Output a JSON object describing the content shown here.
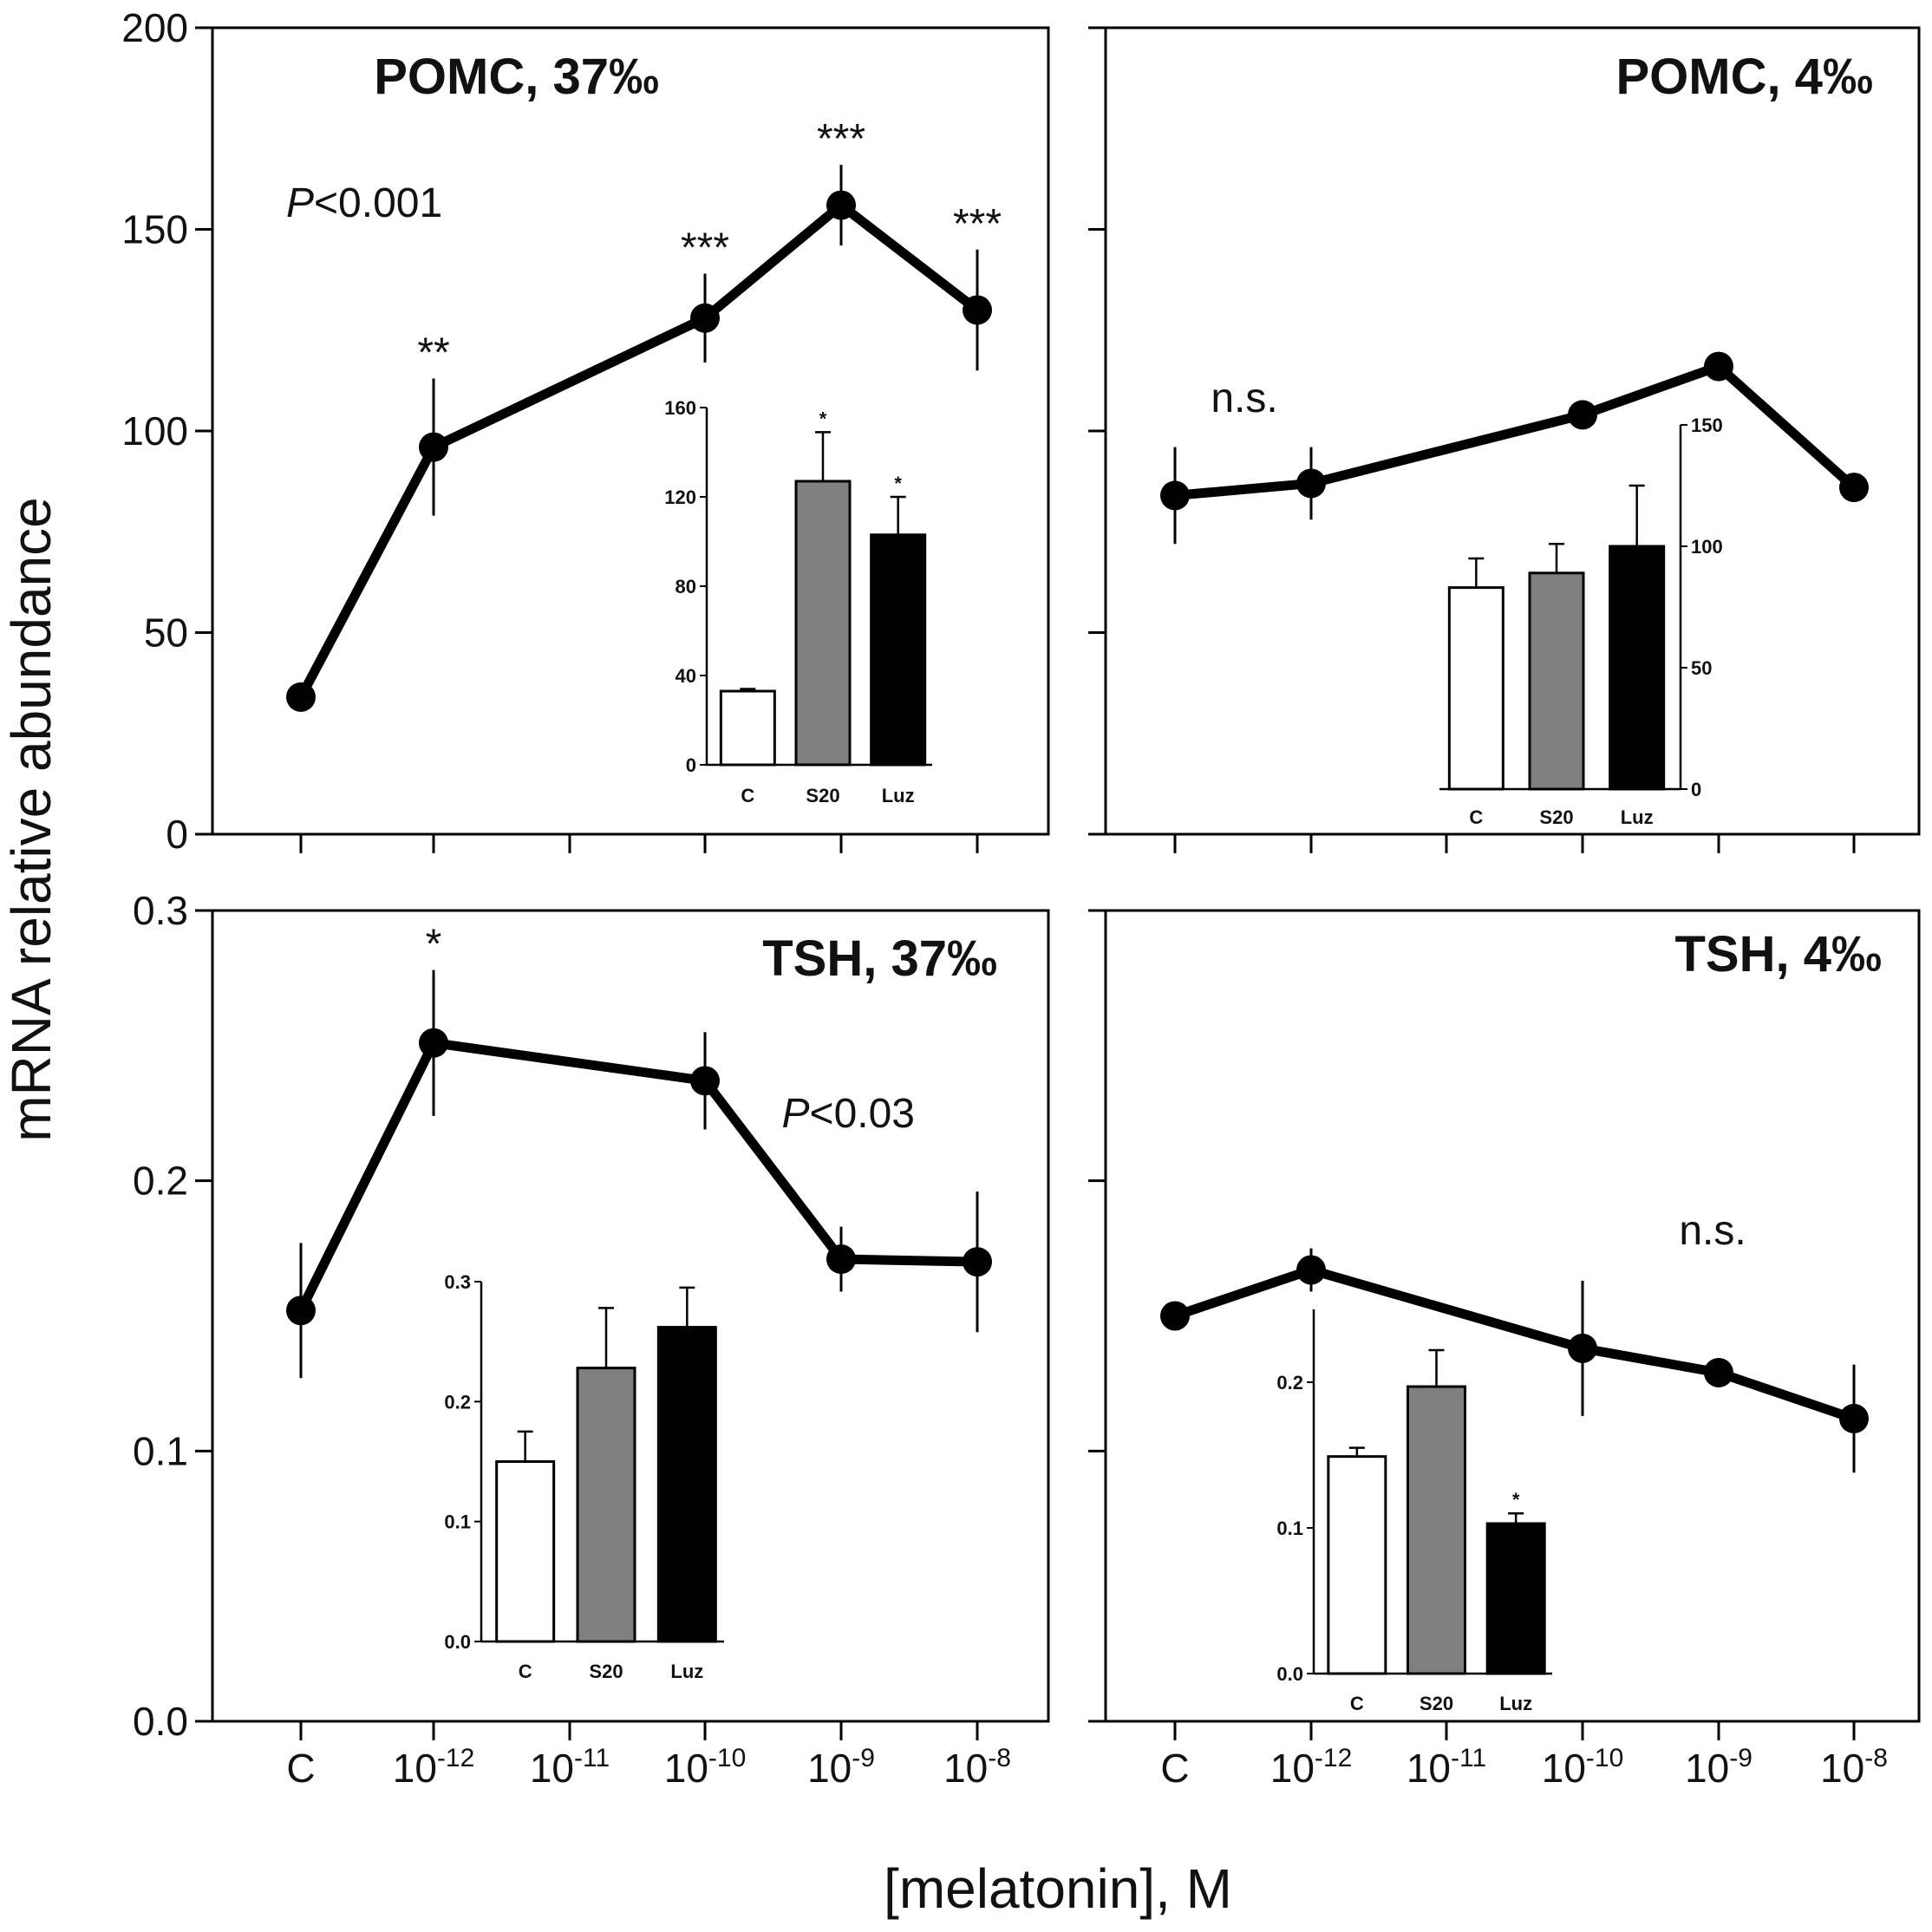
{
  "figure": {
    "ylabel": "mRNA relative abundance",
    "xlabel": "[melatonin], M"
  },
  "x_ticks": [
    {
      "base": "C",
      "exp": ""
    },
    {
      "base": "10",
      "exp": "-12"
    },
    {
      "base": "10",
      "exp": "-11"
    },
    {
      "base": "10",
      "exp": "-10"
    },
    {
      "base": "10",
      "exp": "-9"
    },
    {
      "base": "10",
      "exp": "-8"
    }
  ],
  "colors": {
    "line": "#000000",
    "bar_c": "#ffffff",
    "bar_s20": "#808080",
    "bar_luz": "#000000"
  },
  "chart_data": [
    {
      "id": "pomc37",
      "type": "line",
      "title": "POMC, 37‰",
      "xlabel": "[melatonin], M",
      "ylabel": "mRNA relative abundance",
      "ylim": [
        0,
        200
      ],
      "yticks": [
        0,
        50,
        100,
        150,
        200
      ],
      "ytick_labels": [
        "0",
        "50",
        "100",
        "150",
        "200"
      ],
      "show_ytick_labels": true,
      "annotation": {
        "text": "P<0.001",
        "italic_prefix": "P",
        "rest": "<0.001"
      },
      "points": [
        {
          "x": "C",
          "xi": 0,
          "y": 34,
          "err": 0,
          "sig": ""
        },
        {
          "x": "10-12",
          "xi": 1,
          "y": 96,
          "err": 17,
          "sig": "**"
        },
        {
          "x": "10-10",
          "xi": 3,
          "y": 128,
          "err": 11,
          "sig": "***"
        },
        {
          "x": "10-9",
          "xi": 4,
          "y": 156,
          "err": 10,
          "sig": "***"
        },
        {
          "x": "10-8",
          "xi": 5,
          "y": 130,
          "err": 15,
          "sig": "***"
        }
      ],
      "inset": {
        "type": "bar",
        "categories": [
          "C",
          "S20",
          "Luz"
        ],
        "values": [
          33,
          127,
          103
        ],
        "errors": [
          1,
          22,
          17
        ],
        "sig": [
          "",
          "*",
          "*"
        ],
        "ylim": [
          0,
          160
        ],
        "yticks": [
          0,
          40,
          80,
          120,
          160
        ],
        "ytick_labels": [
          "0",
          "40",
          "80",
          "120",
          "160"
        ],
        "axis_side": "left"
      }
    },
    {
      "id": "pomc4",
      "type": "line",
      "title": "POMC, 4‰",
      "xlabel": "[melatonin], M",
      "ylabel": "mRNA relative abundance",
      "ylim": [
        0,
        200
      ],
      "yticks": [
        0,
        50,
        100,
        150,
        200
      ],
      "ytick_labels": [
        "0",
        "50",
        "100",
        "150",
        "200"
      ],
      "show_ytick_labels": false,
      "annotation": {
        "text": "n.s.",
        "italic_prefix": "",
        "rest": "n.s."
      },
      "points": [
        {
          "x": "C",
          "xi": 0,
          "y": 84,
          "err": 12,
          "sig": ""
        },
        {
          "x": "10-12",
          "xi": 1,
          "y": 87,
          "err": 9,
          "sig": ""
        },
        {
          "x": "10-10",
          "xi": 3,
          "y": 104,
          "err": 0,
          "sig": ""
        },
        {
          "x": "10-9",
          "xi": 4,
          "y": 116,
          "err": 0,
          "sig": ""
        },
        {
          "x": "10-8",
          "xi": 5,
          "y": 86,
          "err": 0,
          "sig": ""
        }
      ],
      "inset": {
        "type": "bar",
        "categories": [
          "C",
          "S20",
          "Luz"
        ],
        "values": [
          83,
          89,
          100
        ],
        "errors": [
          12,
          12,
          25
        ],
        "sig": [
          "",
          "",
          ""
        ],
        "ylim": [
          0,
          150
        ],
        "yticks": [
          0,
          50,
          100,
          150
        ],
        "ytick_labels": [
          "0",
          "50",
          "100",
          "150"
        ],
        "axis_side": "right"
      }
    },
    {
      "id": "tsh37",
      "type": "line",
      "title": "TSH, 37‰",
      "xlabel": "[melatonin], M",
      "ylabel": "mRNA relative abundance",
      "ylim": [
        0,
        0.3
      ],
      "yticks": [
        0,
        0.1,
        0.2,
        0.3
      ],
      "ytick_labels": [
        "0.0",
        "0.1",
        "0.2",
        "0.3"
      ],
      "show_ytick_labels": true,
      "annotation": {
        "text": "P<0.03",
        "italic_prefix": "P",
        "rest": "<0.03"
      },
      "points": [
        {
          "x": "C",
          "xi": 0,
          "y": 0.152,
          "err": 0.025,
          "sig": ""
        },
        {
          "x": "10-12",
          "xi": 1,
          "y": 0.251,
          "err": 0.027,
          "sig": "*"
        },
        {
          "x": "10-10",
          "xi": 3,
          "y": 0.237,
          "err": 0.018,
          "sig": ""
        },
        {
          "x": "10-9",
          "xi": 4,
          "y": 0.171,
          "err": 0.012,
          "sig": ""
        },
        {
          "x": "10-8",
          "xi": 5,
          "y": 0.17,
          "err": 0.026,
          "sig": ""
        }
      ],
      "inset": {
        "type": "bar",
        "categories": [
          "C",
          "S20",
          "Luz"
        ],
        "values": [
          0.15,
          0.228,
          0.262
        ],
        "errors": [
          0.025,
          0.05,
          0.033
        ],
        "sig": [
          "",
          "",
          ""
        ],
        "ylim": [
          0,
          0.3
        ],
        "yticks": [
          0,
          0.1,
          0.2,
          0.3
        ],
        "ytick_labels": [
          "0.0",
          "0.1",
          "0.2",
          "0.3"
        ],
        "axis_side": "left"
      }
    },
    {
      "id": "tsh4",
      "type": "line",
      "title": "TSH, 4‰",
      "xlabel": "[melatonin], M",
      "ylabel": "mRNA relative abundance",
      "ylim": [
        0,
        0.3
      ],
      "yticks": [
        0,
        0.1,
        0.2,
        0.3
      ],
      "ytick_labels": [
        "0.0",
        "0.1",
        "0.2",
        "0.3"
      ],
      "show_ytick_labels": false,
      "annotation": {
        "text": "n.s.",
        "italic_prefix": "",
        "rest": "n.s."
      },
      "points": [
        {
          "x": "C",
          "xi": 0,
          "y": 0.15,
          "err": 0,
          "sig": ""
        },
        {
          "x": "10-12",
          "xi": 1,
          "y": 0.167,
          "err": 0.008,
          "sig": ""
        },
        {
          "x": "10-10",
          "xi": 3,
          "y": 0.138,
          "err": 0.025,
          "sig": ""
        },
        {
          "x": "10-9",
          "xi": 4,
          "y": 0.129,
          "err": 0.005,
          "sig": ""
        },
        {
          "x": "10-8",
          "xi": 5,
          "y": 0.112,
          "err": 0.02,
          "sig": ""
        }
      ],
      "inset": {
        "type": "bar",
        "categories": [
          "C",
          "S20",
          "Luz"
        ],
        "values": [
          0.149,
          0.197,
          0.103
        ],
        "errors": [
          0.006,
          0.025,
          0.007
        ],
        "sig": [
          "",
          "",
          "*"
        ],
        "ylim": [
          0,
          0.25
        ],
        "yticks": [
          0,
          0.1,
          0.2
        ],
        "ytick_labels": [
          "0.0",
          "0.1",
          "0.2"
        ],
        "axis_side": "left"
      }
    }
  ]
}
